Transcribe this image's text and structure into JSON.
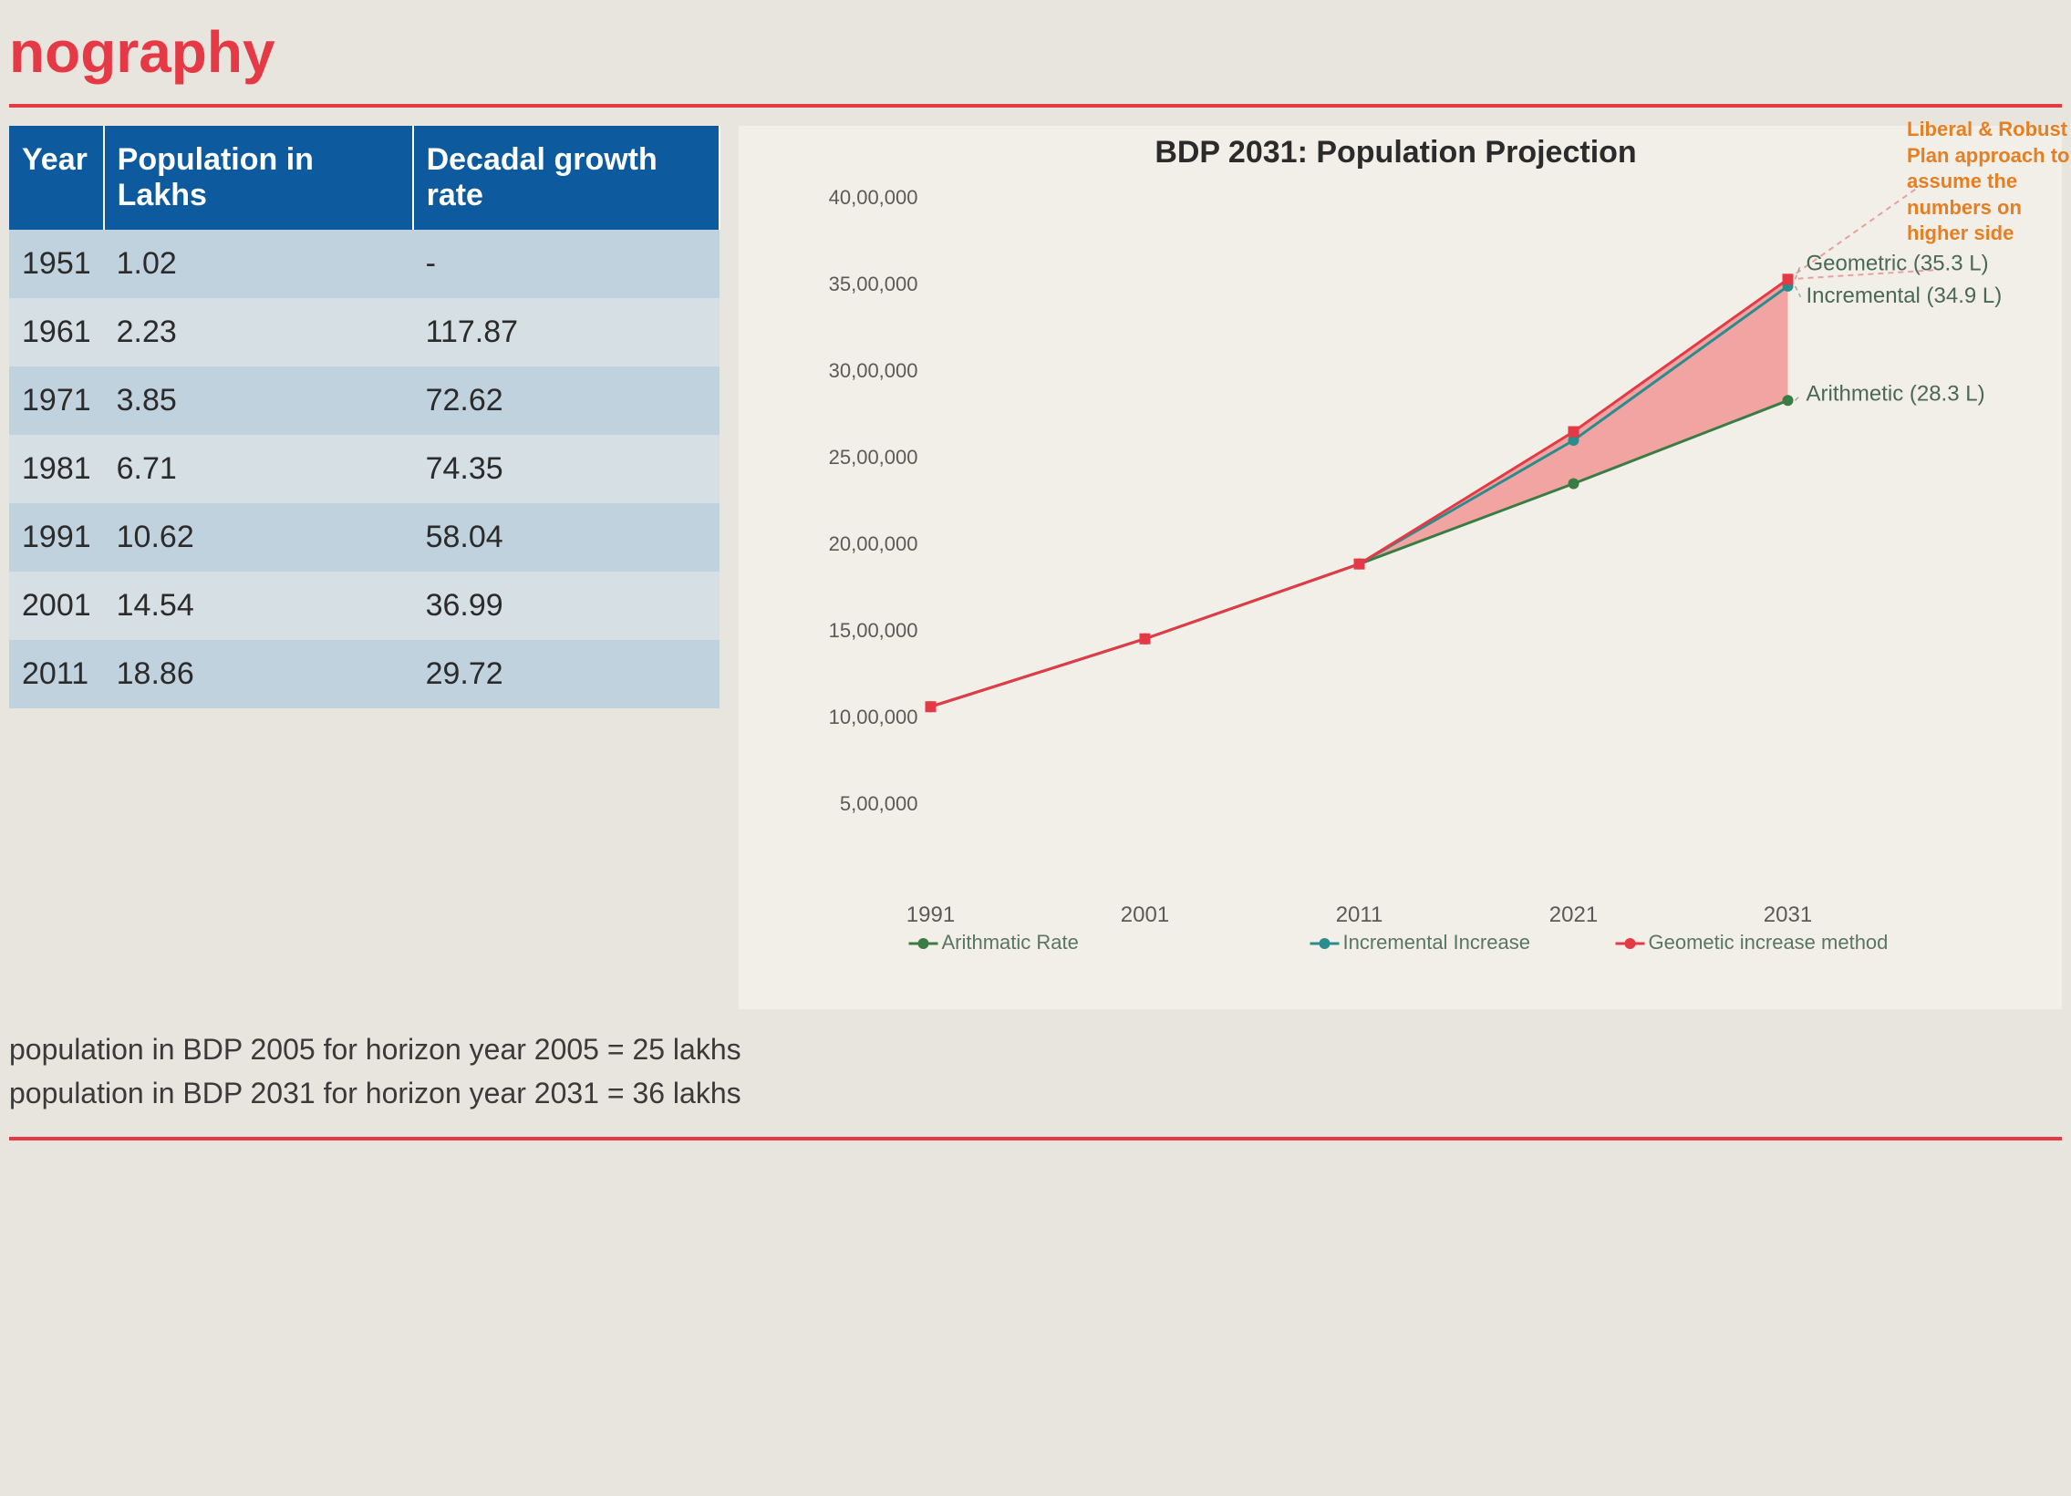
{
  "title": "nography",
  "table": {
    "columns": [
      "Year",
      "Population in Lakhs",
      "Decadal growth rate"
    ],
    "rows": [
      [
        "1951",
        "1.02",
        "-"
      ],
      [
        "1961",
        "2.23",
        "117.87"
      ],
      [
        "1971",
        "3.85",
        "72.62"
      ],
      [
        "1981",
        "6.71",
        "74.35"
      ],
      [
        "1991",
        "10.62",
        "58.04"
      ],
      [
        "2001",
        "14.54",
        "36.99"
      ],
      [
        "2011",
        "18.86",
        "29.72"
      ]
    ],
    "header_bg": "#0e5a9e",
    "header_fg": "#ffffff",
    "row_odd_bg": "#c0d2dd",
    "row_even_bg": "#d6dfe4",
    "font_size": 34
  },
  "chart": {
    "type": "line",
    "title": "BDP 2031: Population Projection",
    "title_fontsize": 34,
    "background_color": "#f2efe8",
    "x_categories": [
      "1991",
      "2001",
      "2011",
      "2021",
      "2031"
    ],
    "ylim": [
      0,
      4000000
    ],
    "ytick_step": 500000,
    "ytick_labels": [
      "",
      "5,00,000",
      "10,00,000",
      "15,00,000",
      "20,00,000",
      "25,00,000",
      "30,00,000",
      "35,00,000",
      "40,00,000"
    ],
    "series": [
      {
        "name": "Arithmatic Rate",
        "color": "#3a7d44",
        "marker": "circle",
        "line_width": 3,
        "values": [
          1062000,
          1454000,
          1886000,
          2350000,
          2830000
        ]
      },
      {
        "name": "Incremental Increase",
        "color": "#2a8c8c",
        "marker": "circle",
        "line_width": 3,
        "values": [
          1062000,
          1454000,
          1886000,
          2600000,
          3490000
        ]
      },
      {
        "name": "Geometic increase method",
        "color": "#e63946",
        "marker": "square",
        "line_width": 3,
        "values": [
          1062000,
          1454000,
          1886000,
          2650000,
          3530000
        ]
      }
    ],
    "fill_region": {
      "color": "#f28b8b",
      "opacity": 0.75,
      "upper_series_index": 2,
      "lower_series_index": 0,
      "from_x_index": 2
    },
    "callouts": [
      {
        "text": "Geometric (35.3 L)",
        "y": 3530000,
        "color": "#4a6854"
      },
      {
        "text": "Incremental (34.9 L)",
        "y": 3490000,
        "color": "#4a6854"
      },
      {
        "text": "Arithmetic (28.3 L)",
        "y": 2830000,
        "color": "#4a6854"
      }
    ],
    "side_annotation": "Liberal & Robust Plan approach to assume the numbers on higher side",
    "side_annotation_color": "#e67e22",
    "legend_items": [
      "Arithmatic Rate",
      "Incremental Increase",
      "Geometic increase method"
    ],
    "axis_label_color": "#5a5a5a",
    "axis_label_fontsize": 22
  },
  "notes": {
    "line1": "population in BDP 2005 for horizon year 2005 = 25 lakhs",
    "line2": "population in BDP 2031 for horizon year 2031 = 36 lakhs"
  },
  "colors": {
    "title": "#e63946",
    "rule": "#e63946",
    "page_bg": "#e8e4de"
  }
}
